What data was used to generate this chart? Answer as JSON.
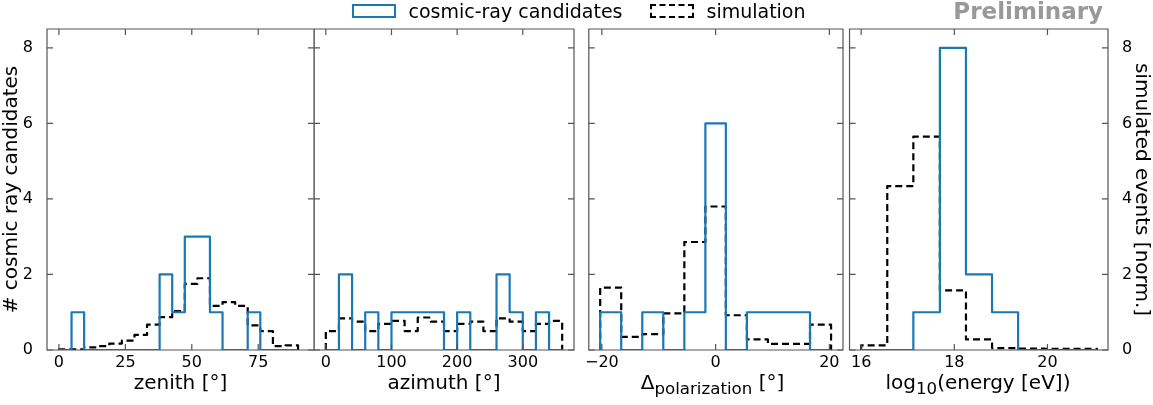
{
  "chart_data": [
    {
      "type": "histogram",
      "xlabel": "zenith [°]",
      "ylabel": "# cosmic ray candidates",
      "bins": [
        0,
        4.74,
        9.47,
        14.21,
        18.95,
        23.68,
        28.42,
        33.16,
        37.89,
        42.63,
        47.37,
        52.11,
        56.84,
        61.58,
        66.32,
        71.05,
        75.79,
        80.53,
        85.26,
        90
      ],
      "series": [
        {
          "color": "#1b78b8",
          "values": [
            0,
            1,
            0,
            0,
            0,
            0,
            0,
            0,
            2,
            1,
            3,
            3,
            1,
            0,
            0,
            1,
            0,
            0,
            0
          ]
        },
        {
          "color": "#000000",
          "line_style": "dashed",
          "values": [
            0.02,
            0.02,
            0.07,
            0.1,
            0.17,
            0.25,
            0.4,
            0.67,
            0.87,
            1.03,
            1.75,
            1.9,
            1.17,
            1.27,
            1.17,
            0.65,
            0.5,
            0.1,
            0.12
          ]
        }
      ],
      "xlim": [
        -4.5,
        96
      ],
      "xticks": [
        0,
        25,
        50,
        75
      ],
      "ylim": [
        0,
        8.5
      ],
      "yticks": [
        0,
        2,
        4,
        6,
        8
      ]
    },
    {
      "type": "histogram",
      "xlabel": "azimuth [°]",
      "legend": "top",
      "tick_labels": "x",
      "bins": [
        0,
        20,
        40,
        60,
        80,
        100,
        120,
        140,
        160,
        180,
        200,
        220,
        240,
        260,
        280,
        300,
        320,
        340,
        360
      ],
      "series": [
        {
          "name": "cosmic-ray candidates",
          "color": "#1b78b8",
          "values": [
            0,
            2,
            0,
            1,
            0,
            1,
            1,
            1,
            1,
            0,
            1,
            0,
            0,
            2,
            1,
            0,
            1,
            0
          ]
        },
        {
          "name": "simulation",
          "color": "#000000",
          "line_style": "dashed",
          "values": [
            0.5,
            0.84,
            0.75,
            0.5,
            0.69,
            0.77,
            0.5,
            0.86,
            0.75,
            0.5,
            0.69,
            0.75,
            0.5,
            0.84,
            0.75,
            0.5,
            0.69,
            0.77
          ]
        }
      ],
      "xlim": [
        -18,
        378
      ],
      "xticks": [
        0,
        100,
        200,
        300
      ],
      "ylim": [
        0,
        8.5
      ],
      "yticks": [
        0,
        2,
        4,
        6,
        8
      ]
    },
    {
      "type": "histogram",
      "xlabel": "Δ$_{polarization}$ [°]",
      "tick_labels": "x",
      "bins": [
        -20.3,
        -16.6,
        -12.9,
        -9.2,
        -5.5,
        -1.8,
        1.8,
        5.5,
        9.2,
        12.9,
        16.6,
        20.3
      ],
      "series": [
        {
          "color": "#1b78b8",
          "values": [
            1,
            0,
            1,
            0,
            1,
            6,
            0,
            1,
            1,
            1,
            0
          ]
        },
        {
          "color": "#000000",
          "line_style": "dashed",
          "values": [
            1.65,
            0.35,
            0.42,
            0.97,
            2.86,
            3.8,
            0.92,
            0.28,
            0.16,
            0.16,
            0.67
          ]
        }
      ],
      "xlim": [
        -22.3,
        22.4
      ],
      "xticks": [
        {
          "value": -20,
          "label": "−20"
        },
        0,
        20
      ],
      "ylim": [
        0,
        8.5
      ],
      "yticks": [
        0,
        2,
        4,
        6,
        8
      ]
    },
    {
      "type": "histogram",
      "xlabel": "log$_{10}$(energy [eV])",
      "y2label": "simulated events [norm.]",
      "annotations": [
        "Preliminary"
      ],
      "bins": [
        16,
        16.56,
        17.12,
        17.69,
        18.25,
        18.81,
        19.37,
        19.94,
        20.5,
        21.06
      ],
      "series": [
        {
          "color": "#1b78b8",
          "axis": "y2",
          "values": [
            0,
            0,
            1,
            8,
            2,
            1,
            0,
            0,
            0
          ]
        },
        {
          "color": "#000000",
          "axis": "y2",
          "line_style": "dashed",
          "values": [
            0.12,
            4.34,
            5.65,
            1.58,
            0.28,
            0.05,
            0.04,
            0.03,
            0.03
          ]
        }
      ],
      "xlim": [
        15.75,
        21.3
      ],
      "xticks": [
        16,
        18,
        20
      ],
      "y2lim": [
        0,
        8.5
      ],
      "y2ticks": [
        0,
        2,
        4,
        6,
        8
      ]
    }
  ]
}
